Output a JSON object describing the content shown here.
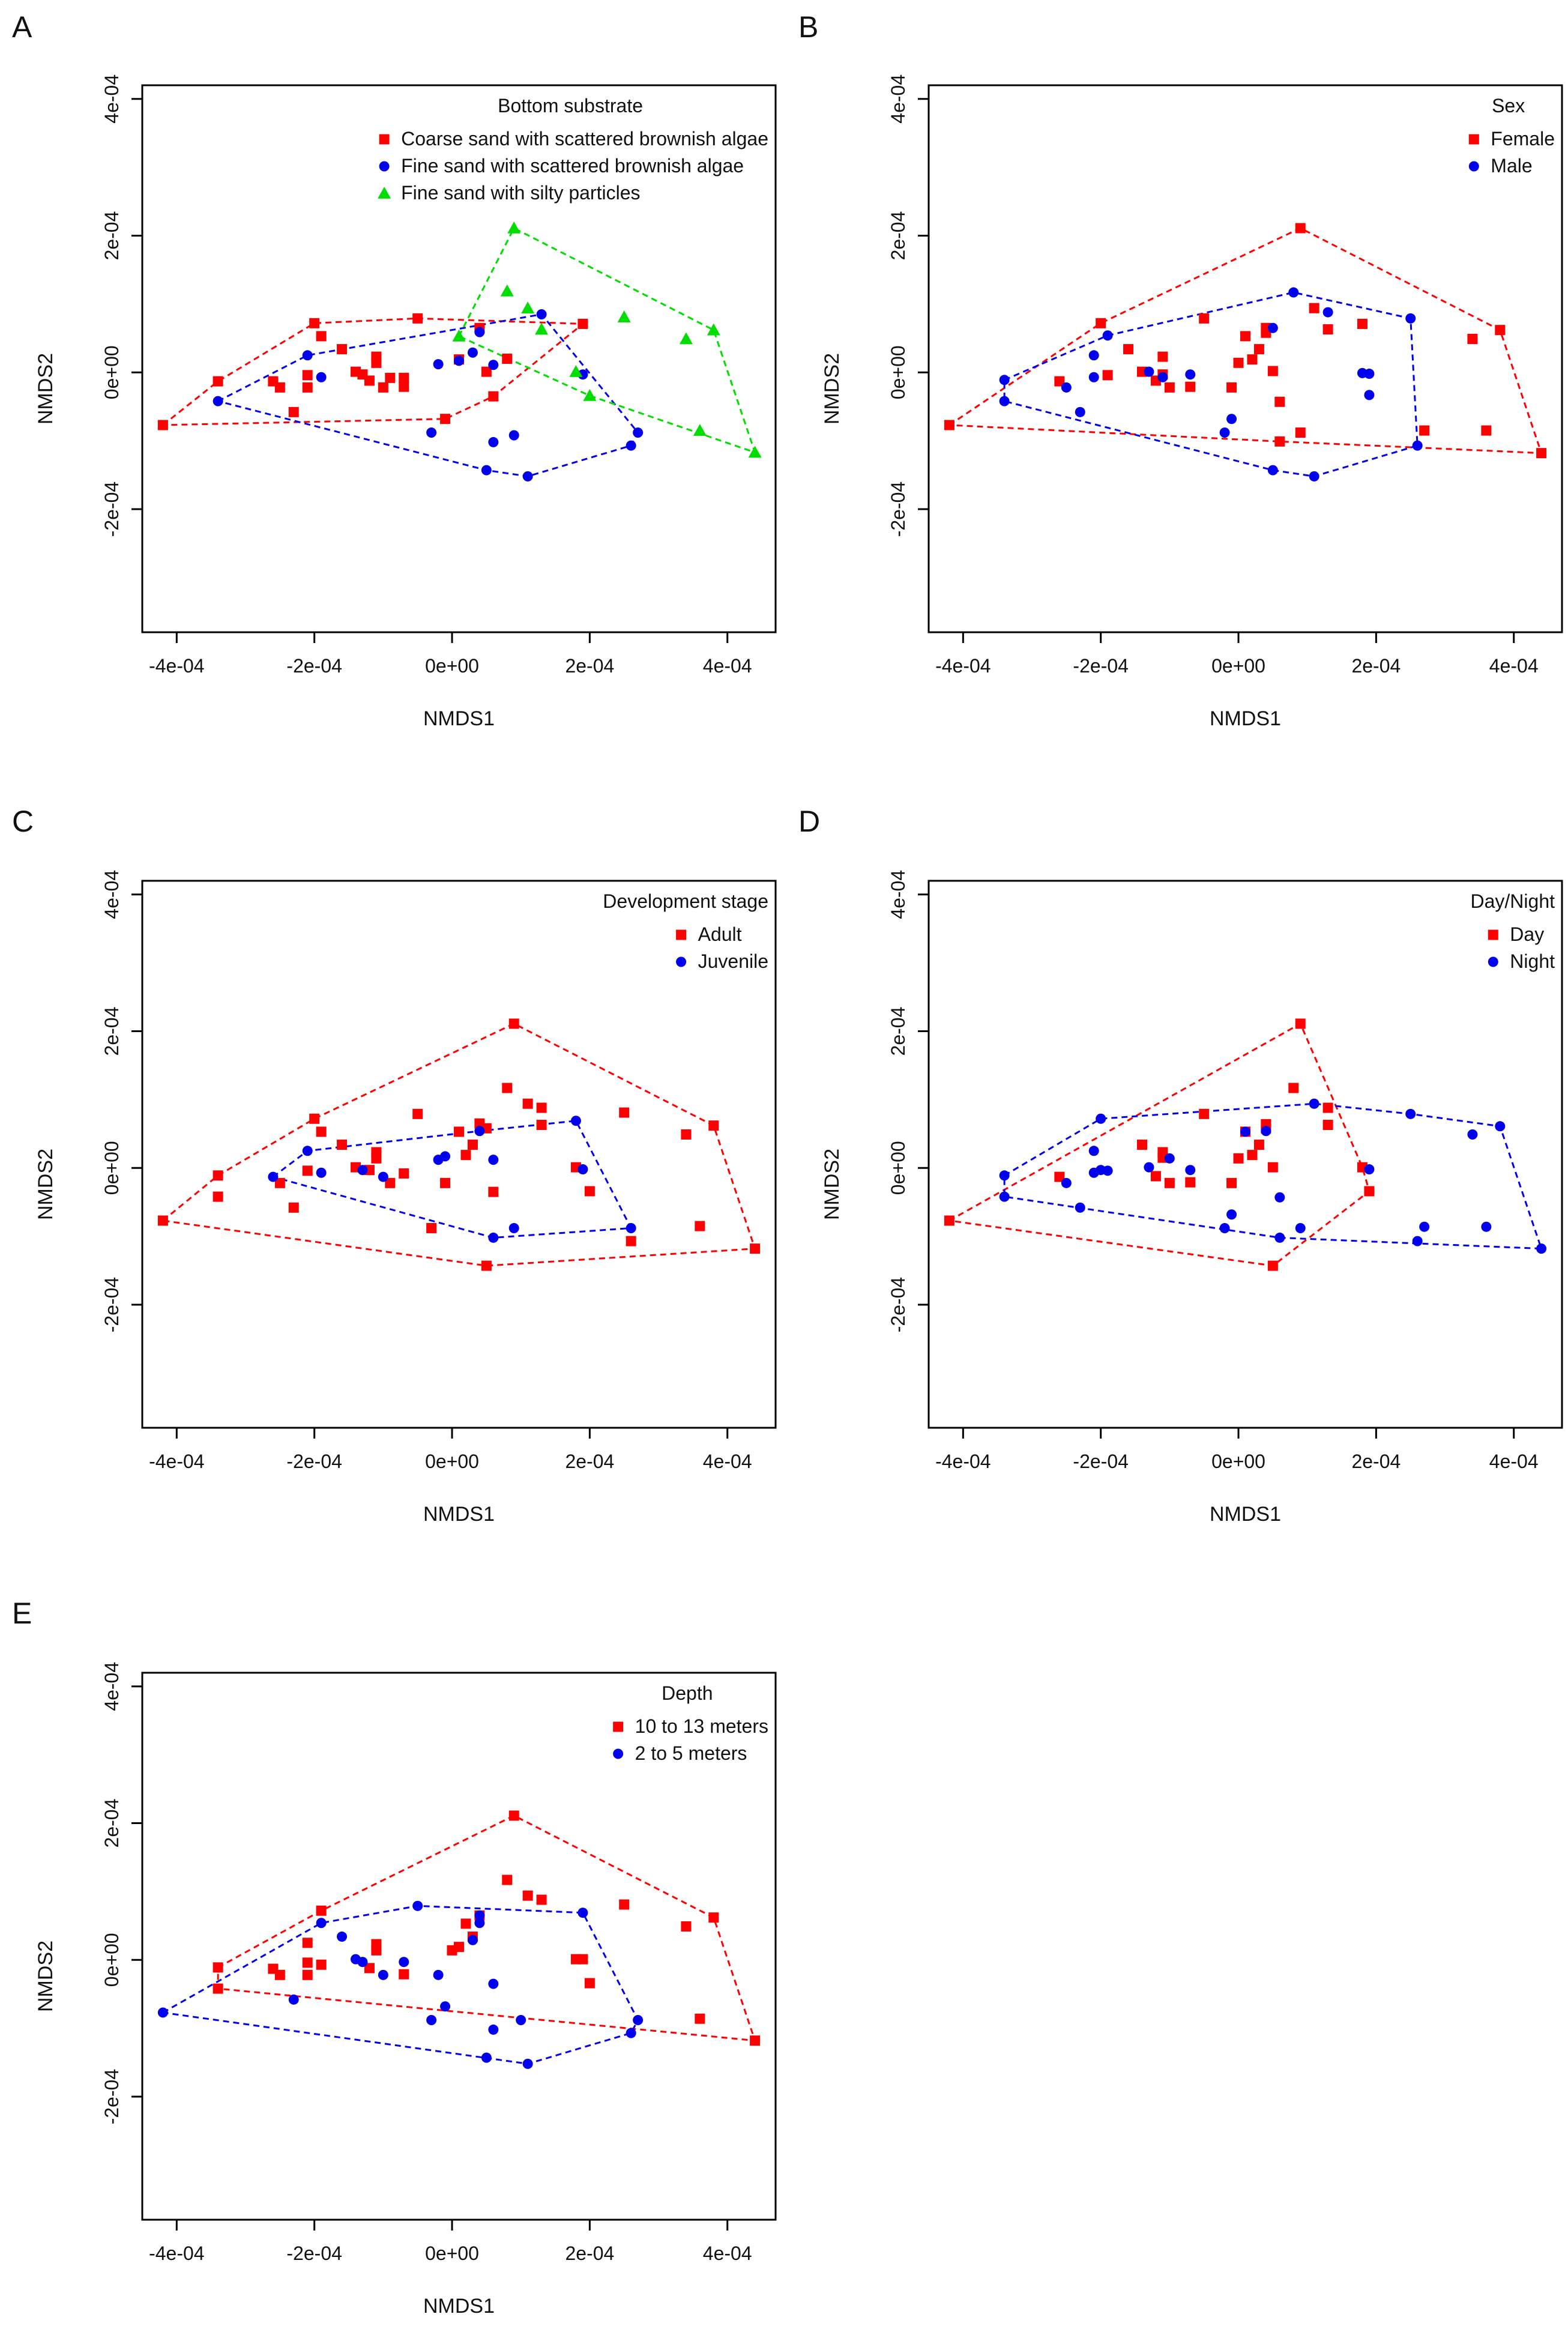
{
  "colors": {
    "red": "#ff0000",
    "blue": "#0000ee",
    "green": "#00dd00"
  },
  "chart_data": [
    {
      "panel": "A",
      "type": "scatter",
      "xlabel": "NMDS1",
      "ylabel": "NMDS2",
      "xlim": [
        -0.00045,
        0.00047
      ],
      "ylim": [
        -0.00038,
        0.00042
      ],
      "xticks": [
        -0.0004,
        -0.0002,
        0.0,
        0.0002,
        0.0004
      ],
      "xtick_labels": [
        "-4e-04",
        "-2e-04",
        "0e+00",
        "2e-04",
        "4e-04"
      ],
      "yticks": [
        -0.0002,
        0.0,
        0.0002,
        0.0004
      ],
      "ytick_labels": [
        "-2e-04",
        "0e+00",
        "2e-04",
        "4e-04"
      ],
      "legend_title": "Bottom substrate",
      "legend_position": "top-right",
      "series": [
        {
          "name": "Coarse sand with scattered brownish algae",
          "marker": "square",
          "color": "#ff0000",
          "hull": true,
          "x": [
            -0.00042,
            -0.00034,
            -0.00026,
            -0.00025,
            -0.00023,
            -0.00021,
            -0.00021,
            -0.0002,
            -0.00019,
            -0.00016,
            -0.00014,
            -0.00013,
            -0.00012,
            -0.00011,
            -0.00011,
            -0.0001,
            -9e-05,
            -7e-05,
            -7e-05,
            -5e-05,
            -1e-05,
            1e-05,
            4e-05,
            5e-05,
            6e-05,
            8e-05,
            0.00019
          ],
          "y": [
            -7.7e-05,
            -1.3e-05,
            -1.3e-05,
            -2.2e-05,
            -5.8e-05,
            -4e-06,
            -2.2e-05,
            7.2e-05,
            5.3e-05,
            3.4e-05,
            1e-06,
            -3e-06,
            -1.2e-05,
            2.3e-05,
            1.4e-05,
            -2.2e-05,
            -8e-06,
            -2.1e-05,
            -8e-06,
            7.9e-05,
            -6.8e-05,
            1.9e-05,
            6.5e-05,
            1e-06,
            -3.5e-05,
            2e-05,
            7.1e-05
          ]
        },
        {
          "name": "Fine sand with scattered brownish algae",
          "marker": "circle",
          "color": "#0000ee",
          "hull": true,
          "x": [
            -0.00034,
            -0.00021,
            -0.00019,
            -3e-05,
            -2e-05,
            1e-05,
            3e-05,
            4e-05,
            5e-05,
            6e-05,
            6e-05,
            9e-05,
            0.00011,
            0.00013,
            0.00019,
            0.00026,
            0.00027
          ],
          "y": [
            -4.2e-05,
            2.5e-05,
            -7e-06,
            -8.8e-05,
            1.2e-05,
            1.7e-05,
            2.9e-05,
            5.9e-05,
            -0.000143,
            1.1e-05,
            -0.000102,
            -9.2e-05,
            -0.000152,
            8.5e-05,
            -3e-06,
            -0.000107,
            -8.8e-05
          ]
        },
        {
          "name": "Fine sand with silty particles",
          "marker": "triangle",
          "color": "#00dd00",
          "hull": true,
          "x": [
            1e-05,
            8e-05,
            9e-05,
            0.00011,
            0.00013,
            0.00018,
            0.0002,
            0.00025,
            0.00034,
            0.00036,
            0.00038,
            0.00044
          ],
          "y": [
            5.3e-05,
            0.000119,
            0.000211,
            9.4e-05,
            6.3e-05,
            1e-06,
            -3.4e-05,
            8.1e-05,
            4.9e-05,
            -8.5e-05,
            6.2e-05,
            -0.000117
          ]
        }
      ]
    },
    {
      "panel": "B",
      "type": "scatter",
      "xlabel": "NMDS1",
      "ylabel": "NMDS2",
      "xlim": [
        -0.00045,
        0.00047
      ],
      "ylim": [
        -0.00038,
        0.00042
      ],
      "xticks": [
        -0.0004,
        -0.0002,
        0.0,
        0.0002,
        0.0004
      ],
      "xtick_labels": [
        "-4e-04",
        "-2e-04",
        "0e+00",
        "2e-04",
        "4e-04"
      ],
      "yticks": [
        -0.0002,
        0.0,
        0.0002,
        0.0004
      ],
      "ytick_labels": [
        "-2e-04",
        "0e+00",
        "2e-04",
        "4e-04"
      ],
      "legend_title": "Sex",
      "legend_position": "top-right",
      "series": [
        {
          "name": "Female",
          "marker": "square",
          "color": "#ff0000",
          "hull": true,
          "x": [
            -0.00042,
            -0.00026,
            -0.0002,
            -0.00019,
            -0.00016,
            -0.00014,
            -0.00012,
            -0.00011,
            -0.00011,
            -0.0001,
            -7e-05,
            -5e-05,
            -1e-05,
            0.0,
            1e-05,
            2e-05,
            3e-05,
            4e-05,
            4e-05,
            5e-05,
            6e-05,
            6e-05,
            9e-05,
            9e-05,
            0.00011,
            0.00013,
            0.00018,
            0.00027,
            0.00034,
            0.00036,
            0.00038,
            0.00044
          ],
          "y": [
            -7.7e-05,
            -1.3e-05,
            7.2e-05,
            -4e-06,
            3.4e-05,
            1e-06,
            -1.2e-05,
            2.3e-05,
            -3e-06,
            -2.2e-05,
            -2.1e-05,
            7.9e-05,
            -2.2e-05,
            1.4e-05,
            5.3e-05,
            1.9e-05,
            3.4e-05,
            6.5e-05,
            5.8e-05,
            2e-06,
            -4.3e-05,
            -0.000101,
            0.000211,
            -8.8e-05,
            9.4e-05,
            6.3e-05,
            7.1e-05,
            -8.5e-05,
            4.9e-05,
            -8.5e-05,
            6.2e-05,
            -0.000118
          ]
        },
        {
          "name": "Male",
          "marker": "circle",
          "color": "#0000ee",
          "hull": true,
          "x": [
            -0.00034,
            -0.00034,
            -0.00025,
            -0.00023,
            -0.00021,
            -0.00021,
            -0.00019,
            -0.00013,
            -0.00011,
            -7e-05,
            -2e-05,
            -1e-05,
            5e-05,
            5e-05,
            8e-05,
            0.00011,
            0.00013,
            0.00018,
            0.00019,
            0.00019,
            0.00025,
            0.00026
          ],
          "y": [
            -4.2e-05,
            -1.1e-05,
            -2.2e-05,
            -5.8e-05,
            2.5e-05,
            -7e-06,
            5.4e-05,
            1e-06,
            -7e-06,
            -3e-06,
            -8.8e-05,
            -6.8e-05,
            6.5e-05,
            -0.000143,
            0.000117,
            -0.000152,
            8.8e-05,
            -1e-06,
            -2e-06,
            -3.3e-05,
            7.9e-05,
            -0.000107
          ]
        }
      ]
    },
    {
      "panel": "C",
      "type": "scatter",
      "xlabel": "NMDS1",
      "ylabel": "NMDS2",
      "xlim": [
        -0.00045,
        0.00047
      ],
      "ylim": [
        -0.00038,
        0.00042
      ],
      "xticks": [
        -0.0004,
        -0.0002,
        0.0,
        0.0002,
        0.0004
      ],
      "xtick_labels": [
        "-4e-04",
        "-2e-04",
        "0e+00",
        "2e-04",
        "4e-04"
      ],
      "yticks": [
        -0.0002,
        0.0,
        0.0002,
        0.0004
      ],
      "ytick_labels": [
        "-2e-04",
        "0e+00",
        "2e-04",
        "4e-04"
      ],
      "legend_title": "Development stage",
      "legend_position": "top-right",
      "series": [
        {
          "name": "Adult",
          "marker": "square",
          "color": "#ff0000",
          "hull": true,
          "x": [
            -0.00042,
            -0.00034,
            -0.00034,
            -0.00025,
            -0.00023,
            -0.00021,
            -0.0002,
            -0.00019,
            -0.00016,
            -0.00014,
            -0.00012,
            -0.00011,
            -0.00011,
            -9e-05,
            -7e-05,
            -5e-05,
            -3e-05,
            -1e-05,
            1e-05,
            2e-05,
            3e-05,
            4e-05,
            5e-05,
            5e-05,
            6e-05,
            8e-05,
            9e-05,
            0.00011,
            0.00013,
            0.00013,
            0.00018,
            0.0002,
            0.00025,
            0.00026,
            0.00034,
            0.00036,
            0.00038,
            0.00044
          ],
          "y": [
            -7.7e-05,
            -1.1e-05,
            -4.2e-05,
            -2.2e-05,
            -5.8e-05,
            -4e-06,
            7.2e-05,
            5.3e-05,
            3.4e-05,
            1e-06,
            -3e-06,
            2.3e-05,
            1.4e-05,
            -2.2e-05,
            -8e-06,
            7.9e-05,
            -8.8e-05,
            -2.2e-05,
            5.3e-05,
            1.9e-05,
            3.4e-05,
            6.5e-05,
            5.8e-05,
            -0.000143,
            -3.5e-05,
            0.000117,
            0.000211,
            9.4e-05,
            8.8e-05,
            6.3e-05,
            1e-06,
            -3.4e-05,
            8.1e-05,
            -0.000107,
            4.9e-05,
            -8.5e-05,
            6.2e-05,
            -0.000118
          ]
        },
        {
          "name": "Juvenile",
          "marker": "circle",
          "color": "#0000ee",
          "hull": true,
          "x": [
            -0.00026,
            -0.00021,
            -0.00019,
            -0.00013,
            -0.0001,
            -2e-05,
            -1e-05,
            4e-05,
            6e-05,
            6e-05,
            9e-05,
            0.00018,
            0.00019,
            0.00026
          ],
          "y": [
            -1.3e-05,
            2.5e-05,
            -7e-06,
            -3e-06,
            -1.3e-05,
            1.2e-05,
            1.7e-05,
            5.4e-05,
            1.2e-05,
            -0.000102,
            -8.8e-05,
            6.9e-05,
            -2e-06,
            -8.8e-05
          ]
        }
      ]
    },
    {
      "panel": "D",
      "type": "scatter",
      "xlabel": "NMDS1",
      "ylabel": "NMDS2",
      "xlim": [
        -0.00045,
        0.00047
      ],
      "ylim": [
        -0.00038,
        0.00042
      ],
      "xticks": [
        -0.0004,
        -0.0002,
        0.0,
        0.0002,
        0.0004
      ],
      "xtick_labels": [
        "-4e-04",
        "-2e-04",
        "0e+00",
        "2e-04",
        "4e-04"
      ],
      "yticks": [
        -0.0002,
        0.0,
        0.0002,
        0.0004
      ],
      "ytick_labels": [
        "-2e-04",
        "0e+00",
        "2e-04",
        "4e-04"
      ],
      "legend_title": "Day/Night",
      "legend_position": "top-right",
      "series": [
        {
          "name": "Day",
          "marker": "square",
          "color": "#ff0000",
          "hull": true,
          "x": [
            -0.00042,
            -0.00026,
            -0.00014,
            -0.00012,
            -0.00011,
            -0.00011,
            -0.0001,
            -7e-05,
            -5e-05,
            -1e-05,
            0.0,
            1e-05,
            2e-05,
            3e-05,
            4e-05,
            4e-05,
            5e-05,
            5e-05,
            8e-05,
            9e-05,
            0.00013,
            0.00013,
            0.00018,
            0.00019
          ],
          "y": [
            -7.7e-05,
            -1.3e-05,
            3.4e-05,
            -1.2e-05,
            2.3e-05,
            1.5e-05,
            -2.2e-05,
            -2.1e-05,
            7.9e-05,
            -2.2e-05,
            1.4e-05,
            5.3e-05,
            1.9e-05,
            3.4e-05,
            6.4e-05,
            5.8e-05,
            1e-06,
            -0.000143,
            0.000117,
            0.000211,
            8.8e-05,
            6.3e-05,
            1e-06,
            -3.4e-05
          ]
        },
        {
          "name": "Night",
          "marker": "circle",
          "color": "#0000ee",
          "hull": true,
          "x": [
            -0.00034,
            -0.00034,
            -0.00025,
            -0.00023,
            -0.00021,
            -0.00021,
            -0.0002,
            -0.0002,
            -0.00019,
            -0.00013,
            -0.0001,
            -7e-05,
            -2e-05,
            -1e-05,
            1e-05,
            4e-05,
            6e-05,
            6e-05,
            9e-05,
            0.00011,
            0.00019,
            0.00025,
            0.00026,
            0.00027,
            0.00034,
            0.00036,
            0.00038,
            0.00044
          ],
          "y": [
            -1.1e-05,
            -4.2e-05,
            -2.2e-05,
            -5.8e-05,
            2.5e-05,
            -7e-06,
            7.2e-05,
            -3e-06,
            -4e-06,
            1e-06,
            1.4e-05,
            -3e-06,
            -8.8e-05,
            -6.8e-05,
            5.3e-05,
            5.4e-05,
            -4.3e-05,
            -0.000102,
            -8.8e-05,
            9.4e-05,
            -2e-06,
            7.9e-05,
            -0.000107,
            -8.6e-05,
            4.9e-05,
            -8.6e-05,
            6.1e-05,
            -0.000118
          ]
        }
      ]
    },
    {
      "panel": "E",
      "type": "scatter",
      "xlabel": "NMDS1",
      "ylabel": "NMDS2",
      "xlim": [
        -0.00045,
        0.00047
      ],
      "ylim": [
        -0.00038,
        0.00042
      ],
      "xticks": [
        -0.0004,
        -0.0002,
        0.0,
        0.0002,
        0.0004
      ],
      "xtick_labels": [
        "-4e-04",
        "-2e-04",
        "0e+00",
        "2e-04",
        "4e-04"
      ],
      "yticks": [
        -0.0002,
        0.0,
        0.0002,
        0.0004
      ],
      "ytick_labels": [
        "-2e-04",
        "0e+00",
        "2e-04",
        "4e-04"
      ],
      "legend_title": "Depth",
      "legend_position": "top-right",
      "series": [
        {
          "name": "10 to 13 meters",
          "marker": "square",
          "color": "#ff0000",
          "hull": true,
          "x": [
            -0.00034,
            -0.00034,
            -0.00026,
            -0.00025,
            -0.00021,
            -0.00021,
            -0.00021,
            -0.00019,
            -0.00019,
            -0.00012,
            -0.00011,
            -0.00011,
            -7e-05,
            0.0,
            1e-05,
            2e-05,
            3e-05,
            4e-05,
            8e-05,
            0.00011,
            0.00013,
            0.00018,
            0.00019,
            0.0002,
            0.00025,
            0.00034,
            0.00036,
            0.00038,
            0.00044,
            9e-05
          ],
          "y": [
            -1.1e-05,
            -4.2e-05,
            -1.3e-05,
            -2.2e-05,
            2.5e-05,
            -4e-06,
            -2.2e-05,
            7.2e-05,
            -7e-06,
            -1.2e-05,
            2.3e-05,
            1.4e-05,
            -2.1e-05,
            1.4e-05,
            1.9e-05,
            5.3e-05,
            3.4e-05,
            6.5e-05,
            0.000117,
            9.4e-05,
            8.8e-05,
            1e-06,
            1e-06,
            -3.4e-05,
            8.1e-05,
            4.9e-05,
            -8.6e-05,
            6.2e-05,
            -0.000118,
            0.000211
          ]
        },
        {
          "name": "2 to 5 meters",
          "marker": "circle",
          "color": "#0000ee",
          "hull": true,
          "x": [
            -0.00042,
            -0.00023,
            -0.00019,
            -0.00016,
            -0.00014,
            -0.00013,
            -0.0001,
            -7e-05,
            -5e-05,
            -3e-05,
            -2e-05,
            -1e-05,
            3e-05,
            4e-05,
            4e-05,
            5e-05,
            6e-05,
            6e-05,
            0.0001,
            0.00011,
            0.00019,
            0.00026,
            0.00027
          ],
          "y": [
            -7.7e-05,
            -5.8e-05,
            5.4e-05,
            3.4e-05,
            1e-06,
            -3e-06,
            -2.2e-05,
            -3e-06,
            7.9e-05,
            -8.8e-05,
            -2.2e-05,
            -6.8e-05,
            2.9e-05,
            5.4e-05,
            6.5e-05,
            -0.000143,
            -3.5e-05,
            -0.000102,
            -8.8e-05,
            -0.000152,
            6.9e-05,
            -0.000107,
            -8.8e-05
          ]
        }
      ]
    }
  ]
}
